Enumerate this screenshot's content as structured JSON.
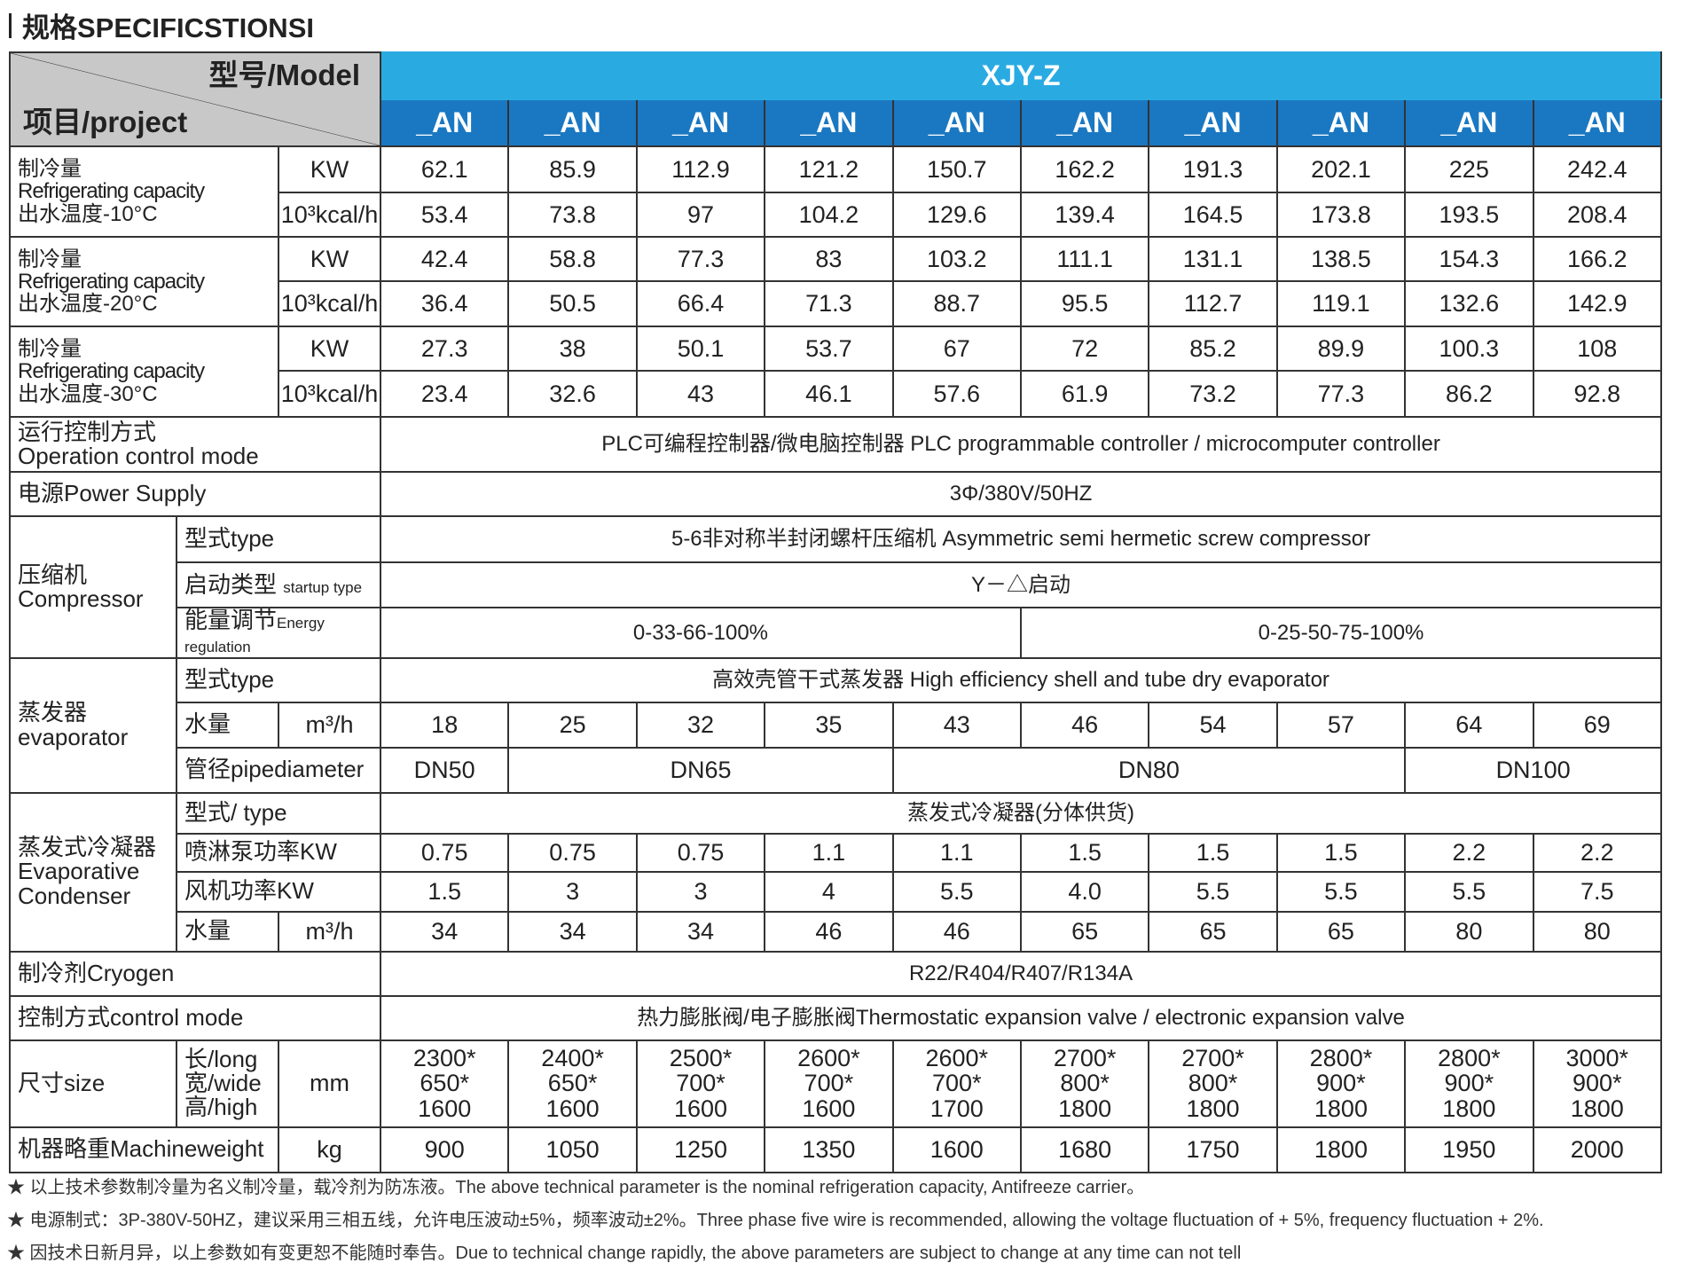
{
  "title": "规格SPECIFICSTIONSI",
  "header": {
    "model_label": "型号/Model",
    "project_label": "项目/project",
    "series": "XJY-Z",
    "models": [
      "_AN",
      "_AN",
      "_AN",
      "_AN",
      "_AN",
      "_AN",
      "_AN",
      "_AN",
      "_AN",
      "_AN"
    ],
    "colors": {
      "series_bg": "#29abe2",
      "model_bg": "#1a78c2",
      "corner_bg": "#c8c8c8"
    }
  },
  "capacity": [
    {
      "label_cn": "制冷量",
      "label_en": "Refrigerating capacity",
      "temp": "出水温度-10°C",
      "kw_unit": "KW",
      "kcal_unit": "10³kcal/h",
      "kw": [
        "62.1",
        "85.9",
        "112.9",
        "121.2",
        "150.7",
        "162.2",
        "191.3",
        "202.1",
        "225",
        "242.4"
      ],
      "kcal": [
        "53.4",
        "73.8",
        "97",
        "104.2",
        "129.6",
        "139.4",
        "164.5",
        "173.8",
        "193.5",
        "208.4"
      ]
    },
    {
      "label_cn": "制冷量",
      "label_en": "Refrigerating capacity",
      "temp": "出水温度-20°C",
      "kw_unit": "KW",
      "kcal_unit": "10³kcal/h",
      "kw": [
        "42.4",
        "58.8",
        "77.3",
        "83",
        "103.2",
        "111.1",
        "131.1",
        "138.5",
        "154.3",
        "166.2"
      ],
      "kcal": [
        "36.4",
        "50.5",
        "66.4",
        "71.3",
        "88.7",
        "95.5",
        "112.7",
        "119.1",
        "132.6",
        "142.9"
      ]
    },
    {
      "label_cn": "制冷量",
      "label_en": "Refrigerating capacity",
      "temp": "出水温度-30°C",
      "kw_unit": "KW",
      "kcal_unit": "10³kcal/h",
      "kw": [
        "27.3",
        "38",
        "50.1",
        "53.7",
        "67",
        "72",
        "85.2",
        "89.9",
        "100.3",
        "108"
      ],
      "kcal": [
        "23.4",
        "32.6",
        "43",
        "46.1",
        "57.6",
        "61.9",
        "73.2",
        "77.3",
        "86.2",
        "92.8"
      ]
    }
  ],
  "operation": {
    "label_cn": "运行控制方式",
    "label_en": "Operation control mode",
    "value": "PLC可编程控制器/微电脑控制器 PLC programmable controller / microcomputer controller"
  },
  "power": {
    "label": "电源Power Supply",
    "value": "3Φ/380V/50HZ"
  },
  "compressor": {
    "label_cn": "压缩机",
    "label_en": "Compressor",
    "type_label": "型式type",
    "type_value": "5-6非对称半封闭螺杆压缩机 Asymmetric semi hermetic screw compressor",
    "startup_label": "启动类型",
    "startup_label_en": "startup type",
    "startup_value": "Y－△启动",
    "energy_label": "能量调节",
    "energy_label_en": "Energy regulation",
    "energy_values": [
      "0-33-66-100%",
      "0-25-50-75-100%"
    ]
  },
  "evaporator": {
    "label_cn": "蒸发器",
    "label_en": "evaporator",
    "type_label": "型式type",
    "type_value": "高效壳管干式蒸发器 High efficiency shell and tube dry evaporator",
    "water_label": "水量",
    "water_unit": "m³/h",
    "water": [
      "18",
      "25",
      "32",
      "35",
      "43",
      "46",
      "54",
      "57",
      "64",
      "69"
    ],
    "pipe_label": "管径pipediameter",
    "pipe": [
      {
        "value": "DN50",
        "span": 1
      },
      {
        "value": "DN65",
        "span": 3
      },
      {
        "value": "DN80",
        "span": 4
      },
      {
        "value": "DN100",
        "span": 2
      }
    ]
  },
  "condenser": {
    "label_cn": "蒸发式冷凝器",
    "label_en": "Evaporative Condenser",
    "type_label": "型式/ type",
    "type_value": "蒸发式冷凝器(分体供货)",
    "pump_label": "喷淋泵功率KW",
    "pump": [
      "0.75",
      "0.75",
      "0.75",
      "1.1",
      "1.1",
      "1.5",
      "1.5",
      "1.5",
      "2.2",
      "2.2"
    ],
    "fan_label": "风机功率KW",
    "fan": [
      "1.5",
      "3",
      "3",
      "4",
      "5.5",
      "4.0",
      "5.5",
      "5.5",
      "5.5",
      "7.5"
    ],
    "water_label": "水量",
    "water_unit": "m³/h",
    "water": [
      "34",
      "34",
      "34",
      "46",
      "46",
      "65",
      "65",
      "65",
      "80",
      "80"
    ]
  },
  "refrigerant": {
    "label": "制冷剂Cryogen",
    "value": "R22/R404/R407/R134A"
  },
  "control": {
    "label": "控制方式control mode",
    "value": "热力膨胀阀/电子膨胀阀Thermostatic expansion valve / electronic expansion valve"
  },
  "size": {
    "label": "尺寸size",
    "dims": [
      "长/long",
      "宽/wide",
      "高/high"
    ],
    "unit": "mm",
    "values": [
      [
        "2300*",
        "650*",
        "1600"
      ],
      [
        "2400*",
        "650*",
        "1600"
      ],
      [
        "2500*",
        "700*",
        "1600"
      ],
      [
        "2600*",
        "700*",
        "1600"
      ],
      [
        "2600*",
        "700*",
        "1700"
      ],
      [
        "2700*",
        "800*",
        "1800"
      ],
      [
        "2700*",
        "800*",
        "1800"
      ],
      [
        "2800*",
        "900*",
        "1800"
      ],
      [
        "2800*",
        "900*",
        "1800"
      ],
      [
        "3000*",
        "900*",
        "1800"
      ]
    ]
  },
  "weight": {
    "label": "机器略重Machineweight",
    "unit": "kg",
    "values": [
      "900",
      "1050",
      "1250",
      "1350",
      "1600",
      "1680",
      "1750",
      "1800",
      "1950",
      "2000"
    ]
  },
  "notes": [
    "★  以上技术参数制冷量为名义制冷量，载冷剂为防冻液。The above technical parameter is the nominal refrigeration capacity, Antifreeze carrier。",
    "★  电源制式：3P-380V-50HZ，建议采用三相五线，允许电压波动±5%，频率波动±2%。Three phase five wire is recommended, allowing the voltage fluctuation of + 5%, frequency fluctuation + 2%.",
    "★  因技术日新月异，以上参数如有变更恕不能随时奉告。Due to technical change rapidly, the above parameters are subject to change at any time can not tell"
  ]
}
